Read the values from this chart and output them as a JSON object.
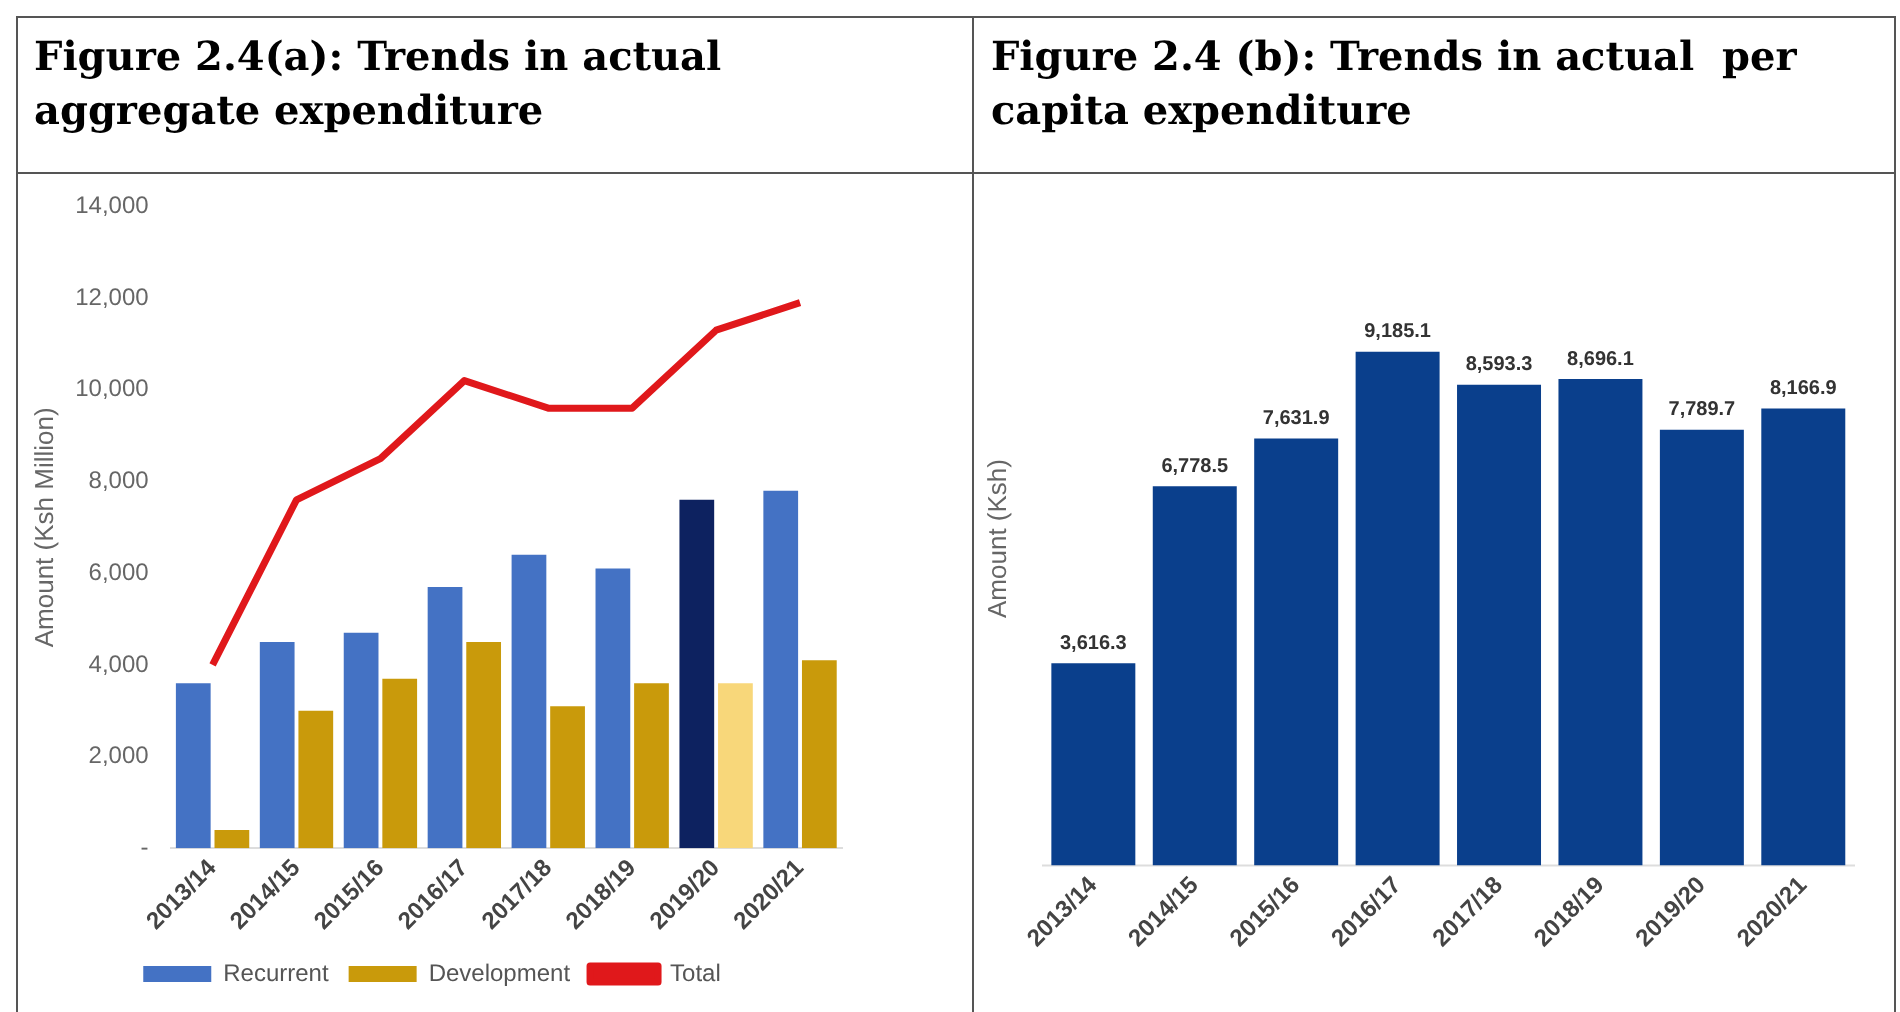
{
  "chart_data": [
    {
      "type": "bar",
      "title": "Figure 2.4(a): Trends in actual aggregate expenditure",
      "ylabel": "Amount (Ksh Million)",
      "categories": [
        "2013/14",
        "2014/15",
        "2015/16",
        "2016/17",
        "2017/18",
        "2018/19",
        "2019/20",
        "2020/21"
      ],
      "series": [
        {
          "name": "Recurrent",
          "color": "#4472c4",
          "colors": [
            "#4472c4",
            "#4472c4",
            "#4472c4",
            "#4472c4",
            "#4472c4",
            "#4472c4",
            "#0d2260",
            "#4472c4"
          ],
          "values": [
            3600,
            4500,
            4700,
            5700,
            6400,
            6100,
            7600,
            7800
          ]
        },
        {
          "name": "Development",
          "color": "#c99a0b",
          "colors": [
            "#c99a0b",
            "#c99a0b",
            "#c99a0b",
            "#c99a0b",
            "#c99a0b",
            "#c99a0b",
            "#f8d77a",
            "#c99a0b"
          ],
          "values": [
            400,
            3000,
            3700,
            4500,
            3100,
            3600,
            3600,
            4100
          ]
        },
        {
          "name": "Total",
          "type": "line",
          "color": "#e0181b",
          "values": [
            4000,
            7600,
            8500,
            10200,
            9600,
            9600,
            11300,
            11900
          ]
        }
      ],
      "ylim": [
        0,
        14000
      ],
      "yticks": [
        {
          "value": 0,
          "label": "-"
        },
        {
          "value": 2000,
          "label": "2,000"
        },
        {
          "value": 4000,
          "label": "4,000"
        },
        {
          "value": 6000,
          "label": "6,000"
        },
        {
          "value": 8000,
          "label": "8,000"
        },
        {
          "value": 10000,
          "label": "10,000"
        },
        {
          "value": 12000,
          "label": "12,000"
        },
        {
          "value": 14000,
          "label": "14,000"
        }
      ],
      "grid": false,
      "legend": "bottom",
      "marker": "none",
      "line_style": "solid"
    },
    {
      "type": "bar",
      "title": "Figure 2.4 (b): Trends in actual  per capita expenditure",
      "ylabel": "Amount (Ksh)",
      "categories": [
        "2013/14",
        "2014/15",
        "2015/16",
        "2016/17",
        "2017/18",
        "2018/19",
        "2019/20",
        "2020/21"
      ],
      "series": [
        {
          "color": "#0a3f8c",
          "values": [
            3616.3,
            6778.5,
            7631.9,
            9185.1,
            8593.3,
            8696.1,
            7789.7,
            8166.9
          ],
          "value_labels": [
            "3,616.3",
            "6,778.5",
            "7,631.9",
            "9,185.1",
            "8,593.3",
            "8,696.1",
            "7,789.7",
            "8,166.9"
          ]
        }
      ],
      "tick_labels": "x",
      "grid": false,
      "legend": false
    }
  ]
}
